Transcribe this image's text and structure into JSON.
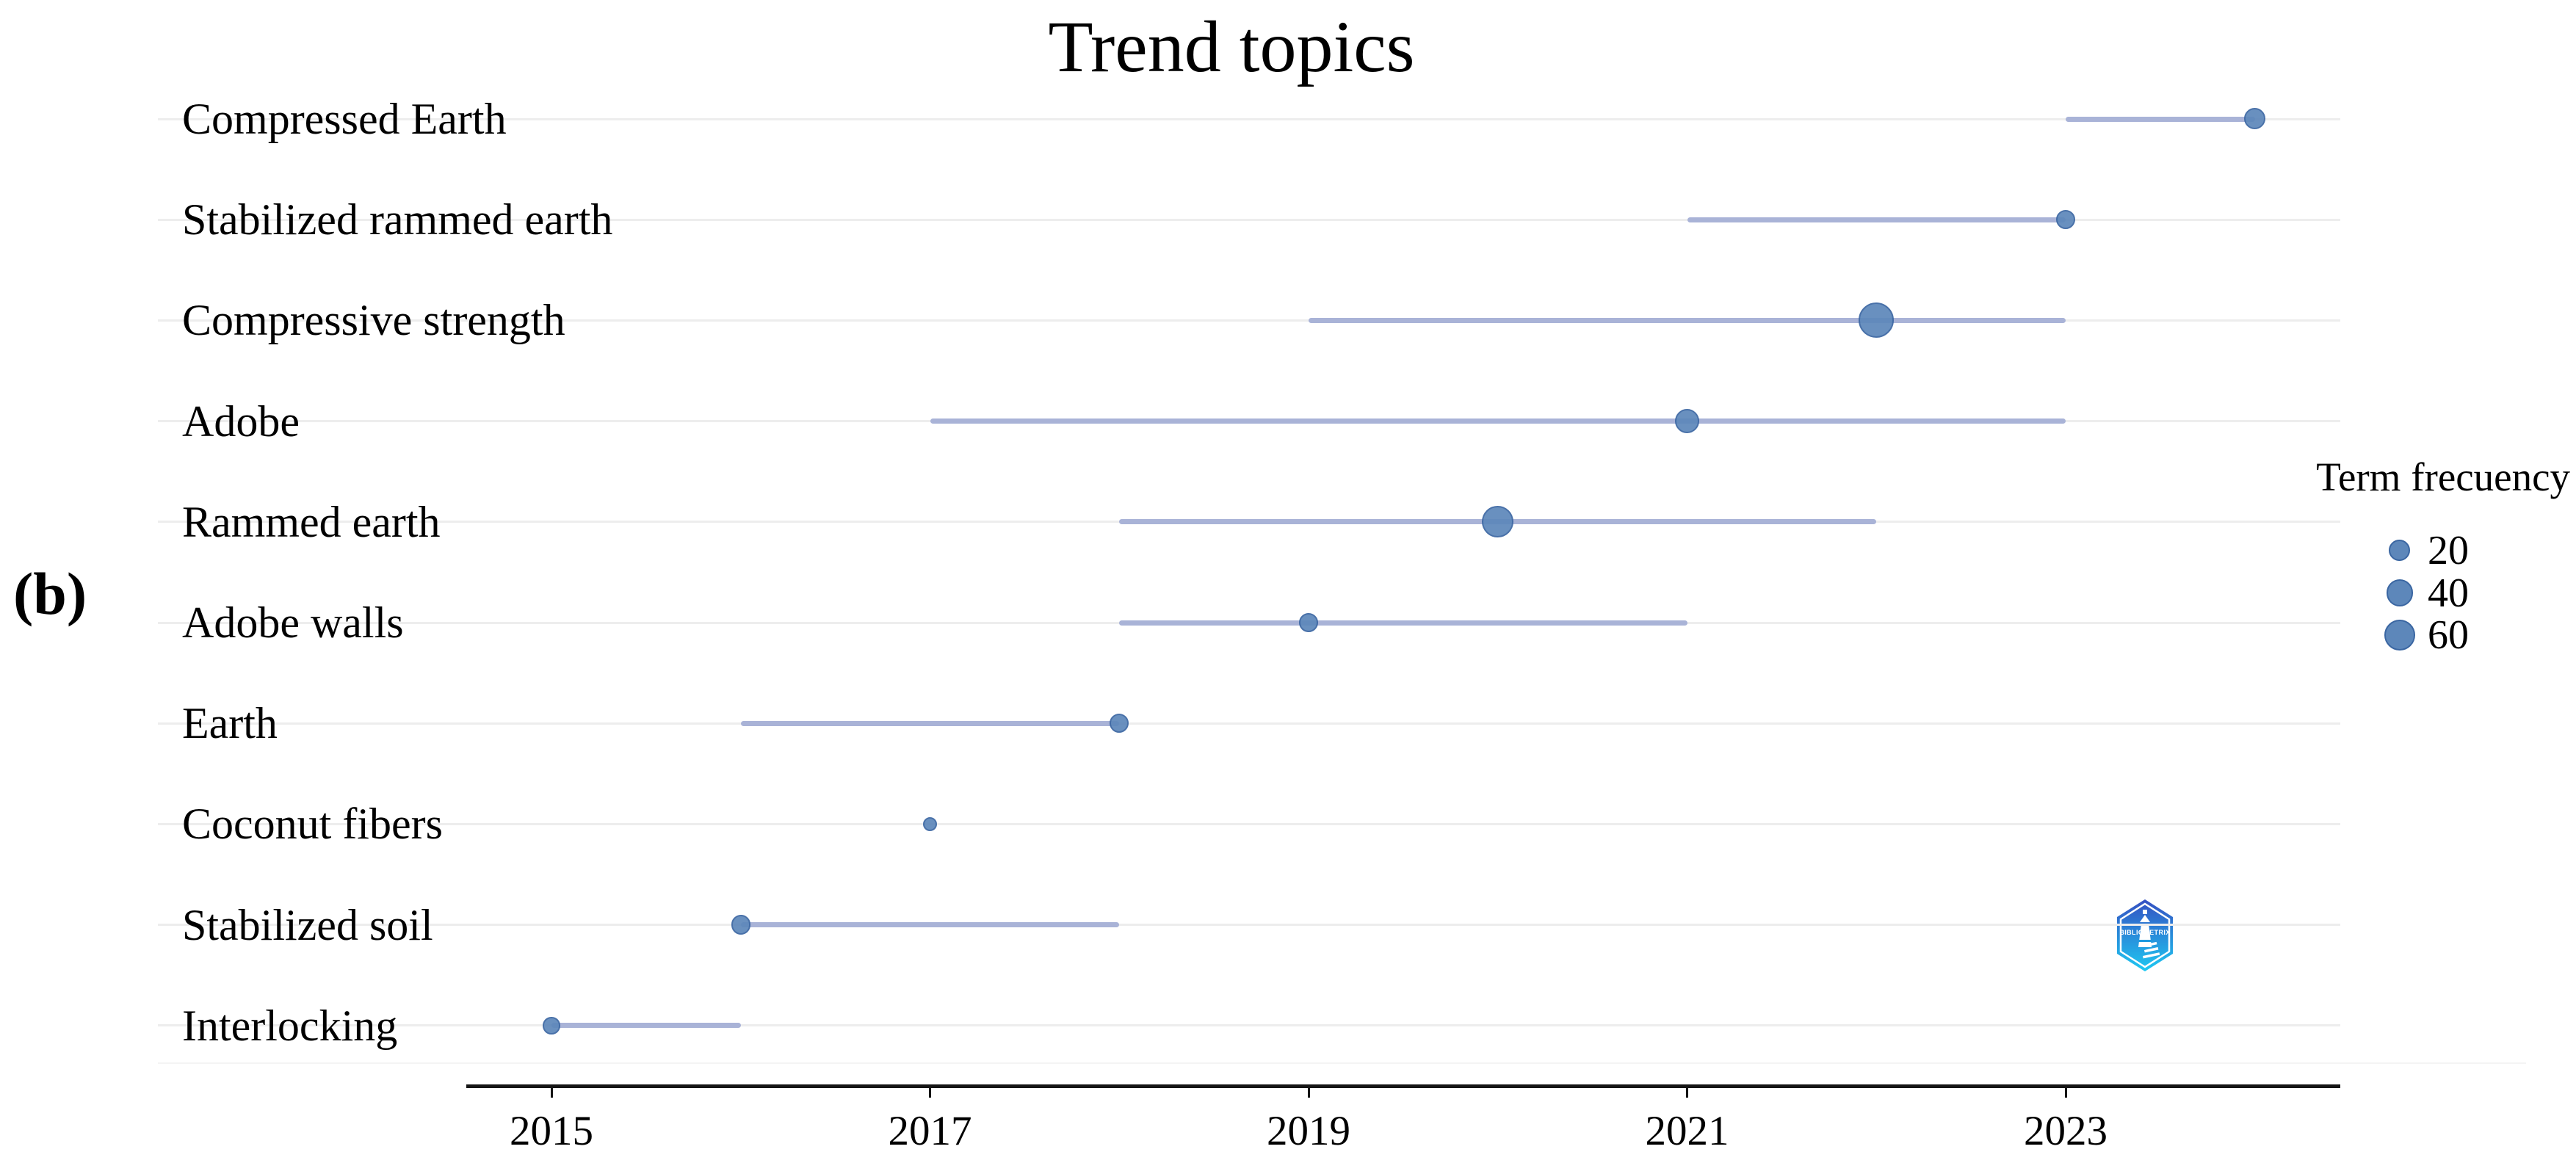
{
  "title": "Trend topics",
  "panel_label": "(b)",
  "legend": {
    "title": "Term frecuency",
    "items": [
      {
        "label": "20",
        "value": 20
      },
      {
        "label": "40",
        "value": 40
      },
      {
        "label": "60",
        "value": 60
      }
    ]
  },
  "x_axis": {
    "tick_labels": [
      "2015",
      "2017",
      "2019",
      "2021",
      "2023"
    ],
    "tick_years": [
      2015,
      2017,
      2019,
      2021,
      2023
    ]
  },
  "logo": {
    "name": "bibliometrix-logo",
    "text": "BIBLIOMETRIX"
  },
  "colors": {
    "dot_fill": "#5d87ba",
    "dot_border": "#3a66a2",
    "segment": "#a9b3d7",
    "gridline": "#ededed",
    "faint_line": "#f4f4f4",
    "axis": "#151515",
    "text": "#000000",
    "logo_gradient_top": "#3550c2",
    "logo_gradient_bottom": "#1ec9f2"
  },
  "chart_data": {
    "type": "scatter",
    "subtype": "trend-topics-timeline",
    "title": "Trend topics",
    "xlabel": "",
    "ylabel": "",
    "x_range": [
      2014.5,
      2024.8
    ],
    "grid": "horizontal-only",
    "legend_position": "right",
    "legend_title": "Term frecuency",
    "legend_sizes": [
      20,
      40,
      60
    ],
    "topics": [
      {
        "label": "Compressed Earth",
        "year_q1": 2023,
        "year_median": 2024,
        "year_q3": 2024,
        "term_frequency": 20
      },
      {
        "label": "Stabilized rammed earth",
        "year_q1": 2021,
        "year_median": 2023,
        "year_q3": 2023,
        "term_frequency": 15
      },
      {
        "label": "Compressive strength",
        "year_q1": 2019,
        "year_median": 2022,
        "year_q3": 2023,
        "term_frequency": 80
      },
      {
        "label": "Adobe",
        "year_q1": 2017,
        "year_median": 2021,
        "year_q3": 2023,
        "term_frequency": 30
      },
      {
        "label": "Rammed earth",
        "year_q1": 2018,
        "year_median": 2020,
        "year_q3": 2022,
        "term_frequency": 60
      },
      {
        "label": "Adobe walls",
        "year_q1": 2018,
        "year_median": 2019,
        "year_q3": 2021,
        "term_frequency": 15
      },
      {
        "label": "Earth",
        "year_q1": 2016,
        "year_median": 2018,
        "year_q3": 2018,
        "term_frequency": 15
      },
      {
        "label": "Coconut fibers",
        "year_q1": 2017,
        "year_median": 2017,
        "year_q3": 2017,
        "term_frequency": 5
      },
      {
        "label": "Stabilized soil",
        "year_q1": 2016,
        "year_median": 2016,
        "year_q3": 2018,
        "term_frequency": 15
      },
      {
        "label": "Interlocking",
        "year_q1": 2015,
        "year_median": 2015,
        "year_q3": 2016,
        "term_frequency": 10
      }
    ]
  }
}
